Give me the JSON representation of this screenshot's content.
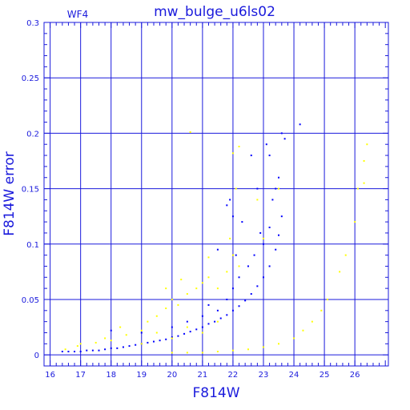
{
  "chart_data": {
    "type": "scatter",
    "title": "mw_bulge_u6ls02",
    "panel_label": "WF4",
    "xlabel": "F814W",
    "ylabel": "F814W error",
    "xlim": [
      15.8,
      27.1
    ],
    "ylim": [
      -0.01,
      0.3
    ],
    "x_ticks": [
      16,
      17,
      18,
      19,
      20,
      21,
      22,
      23,
      24,
      25,
      26
    ],
    "y_ticks": [
      0,
      0.05,
      0.1,
      0.15,
      0.2,
      0.25,
      0.3
    ],
    "y_tick_labels": [
      "0",
      "0.05",
      "0.1",
      "0.15",
      "0.2",
      "0.25",
      "0.3"
    ],
    "grid": true,
    "colors": {
      "axis": "#1a1adc",
      "grid": "#1a1adc",
      "blue": "#0000ff",
      "yellow": "#ffff00"
    },
    "series": [
      {
        "color": "#0000ff",
        "points": [
          [
            16.4,
            0.003
          ],
          [
            16.6,
            0.003
          ],
          [
            16.8,
            0.003
          ],
          [
            17.0,
            0.003
          ],
          [
            17.2,
            0.004
          ],
          [
            17.4,
            0.004
          ],
          [
            17.6,
            0.004
          ],
          [
            17.8,
            0.005
          ],
          [
            18.0,
            0.006
          ],
          [
            18.2,
            0.006
          ],
          [
            18.4,
            0.007
          ],
          [
            18.6,
            0.008
          ],
          [
            18.8,
            0.009
          ],
          [
            19.0,
            0.01
          ],
          [
            19.2,
            0.011
          ],
          [
            19.4,
            0.012
          ],
          [
            19.6,
            0.013
          ],
          [
            19.8,
            0.014
          ],
          [
            20.0,
            0.016
          ],
          [
            20.2,
            0.017
          ],
          [
            20.4,
            0.019
          ],
          [
            20.6,
            0.021
          ],
          [
            20.8,
            0.023
          ],
          [
            21.0,
            0.025
          ],
          [
            21.2,
            0.028
          ],
          [
            21.4,
            0.03
          ],
          [
            21.6,
            0.033
          ],
          [
            21.8,
            0.036
          ],
          [
            22.0,
            0.04
          ],
          [
            22.2,
            0.044
          ],
          [
            22.4,
            0.049
          ],
          [
            22.6,
            0.055
          ],
          [
            22.8,
            0.062
          ],
          [
            23.0,
            0.07
          ],
          [
            23.2,
            0.08
          ],
          [
            23.4,
            0.095
          ],
          [
            23.5,
            0.108
          ],
          [
            23.6,
            0.125
          ],
          [
            20.5,
            0.03
          ],
          [
            21.0,
            0.035
          ],
          [
            21.2,
            0.045
          ],
          [
            21.5,
            0.04
          ],
          [
            21.8,
            0.05
          ],
          [
            22.0,
            0.06
          ],
          [
            22.2,
            0.07
          ],
          [
            22.5,
            0.08
          ],
          [
            22.7,
            0.09
          ],
          [
            23.0,
            0.1
          ],
          [
            23.2,
            0.115
          ],
          [
            23.3,
            0.14
          ],
          [
            23.5,
            0.16
          ],
          [
            23.6,
            0.2
          ],
          [
            23.7,
            0.195
          ],
          [
            24.2,
            0.208
          ],
          [
            21.8,
            0.135
          ],
          [
            22.0,
            0.125
          ],
          [
            22.6,
            0.18
          ],
          [
            22.8,
            0.15
          ],
          [
            21.5,
            0.095
          ],
          [
            22.1,
            0.09
          ],
          [
            21.9,
            0.14
          ],
          [
            23.1,
            0.19
          ],
          [
            18.0,
            0.022
          ],
          [
            19.0,
            0.02
          ],
          [
            20.0,
            0.025
          ],
          [
            22.3,
            0.12
          ],
          [
            22.9,
            0.11
          ],
          [
            23.4,
            0.15
          ],
          [
            23.2,
            0.18
          ]
        ]
      },
      {
        "color": "#ffff00",
        "points": [
          [
            17.0,
            0.01
          ],
          [
            17.5,
            0.011
          ],
          [
            18.0,
            0.013
          ],
          [
            18.5,
            0.018
          ],
          [
            19.0,
            0.022
          ],
          [
            19.2,
            0.03
          ],
          [
            19.5,
            0.035
          ],
          [
            19.8,
            0.042
          ],
          [
            20.0,
            0.05
          ],
          [
            20.2,
            0.045
          ],
          [
            20.5,
            0.055
          ],
          [
            20.8,
            0.06
          ],
          [
            21.0,
            0.065
          ],
          [
            21.2,
            0.07
          ],
          [
            21.5,
            0.06
          ],
          [
            21.8,
            0.075
          ],
          [
            22.0,
            0.09
          ],
          [
            22.2,
            0.08
          ],
          [
            19.0,
            0.01
          ],
          [
            20.0,
            0.015
          ],
          [
            21.0,
            0.02
          ],
          [
            19.5,
            0.02
          ],
          [
            20.5,
            0.025
          ],
          [
            21.5,
            0.03
          ],
          [
            20.0,
            0.002
          ],
          [
            20.5,
            0.002
          ],
          [
            21.0,
            0.002
          ],
          [
            21.5,
            0.003
          ],
          [
            22.0,
            0.004
          ],
          [
            22.5,
            0.005
          ],
          [
            23.0,
            0.007
          ],
          [
            23.5,
            0.01
          ],
          [
            24.0,
            0.015
          ],
          [
            24.3,
            0.022
          ],
          [
            24.6,
            0.03
          ],
          [
            24.9,
            0.04
          ],
          [
            25.1,
            0.05
          ],
          [
            25.5,
            0.075
          ],
          [
            25.7,
            0.09
          ],
          [
            26.0,
            0.12
          ],
          [
            26.1,
            0.15
          ],
          [
            26.3,
            0.175
          ],
          [
            26.4,
            0.19
          ],
          [
            26.3,
            0.155
          ],
          [
            20.6,
            0.201
          ],
          [
            22.0,
            0.182
          ],
          [
            22.2,
            0.188
          ],
          [
            22.8,
            0.14
          ],
          [
            23.5,
            0.15
          ],
          [
            22.1,
            0.15
          ],
          [
            20.3,
            0.068
          ],
          [
            19.8,
            0.06
          ],
          [
            21.2,
            0.088
          ],
          [
            21.9,
            0.105
          ],
          [
            23.0,
            0.105
          ],
          [
            18.3,
            0.025
          ],
          [
            16.5,
            0.005
          ],
          [
            16.9,
            0.008
          ],
          [
            17.8,
            0.015
          ]
        ]
      }
    ]
  }
}
